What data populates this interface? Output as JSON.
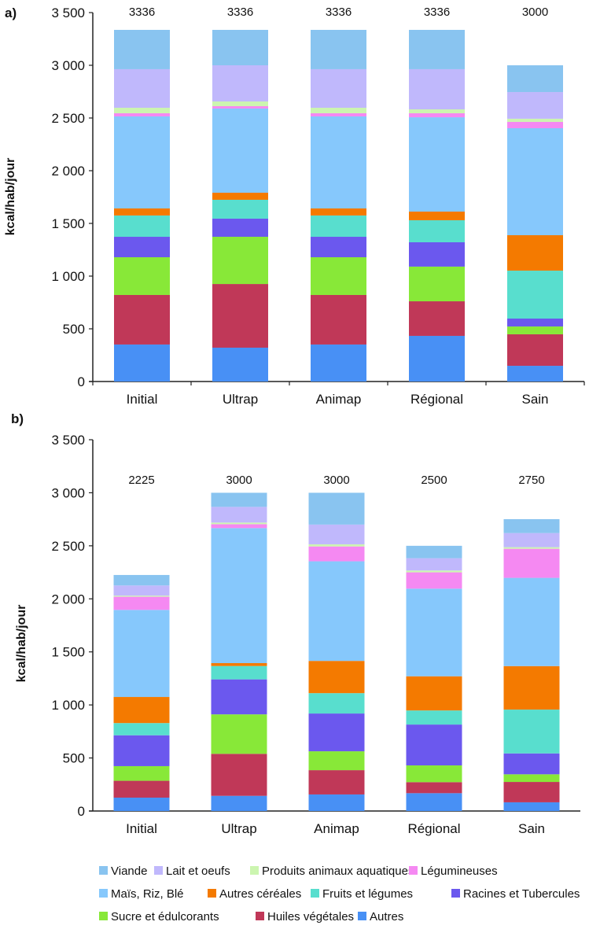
{
  "chart_data": [
    {
      "type": "bar",
      "stacked": true,
      "panel_label": "a)",
      "title": "",
      "xlabel": "",
      "ylabel": "kcal/hab/jour",
      "ylim": [
        0,
        3500
      ],
      "yticks": [
        0,
        500,
        1000,
        1500,
        2000,
        2500,
        3000,
        3500
      ],
      "ytick_labels": [
        "0",
        "500",
        "1 000",
        "1 500",
        "2 000",
        "2 500",
        "3 000",
        "3 500"
      ],
      "x_ticks": true,
      "categories": [
        "Initial",
        "Ultrap",
        "Animap",
        "Régional",
        "Sain"
      ],
      "totals": [
        "3336",
        "3336",
        "3336",
        "3336",
        "3000"
      ],
      "series": [
        {
          "name": "Autres",
          "values": [
            351,
            321,
            351,
            433,
            149
          ]
        },
        {
          "name": "Huiles végétales",
          "values": [
            470,
            604,
            470,
            328,
            299
          ]
        },
        {
          "name": "Sucre et édulcorants",
          "values": [
            358,
            448,
            358,
            329,
            74
          ]
        },
        {
          "name": "Racines et Tubercules",
          "values": [
            194,
            172,
            194,
            231,
            75
          ]
        },
        {
          "name": "Fruits et légumes",
          "values": [
            202,
            179,
            202,
            209,
            455
          ]
        },
        {
          "name": "Autres céréales",
          "values": [
            67,
            67,
            67,
            82,
            336
          ]
        },
        {
          "name": "Maïs, Riz, Blé",
          "values": [
            873,
            799,
            873,
            895,
            1015
          ]
        },
        {
          "name": "Légumineuses",
          "values": [
            30,
            22,
            30,
            38,
            60
          ]
        },
        {
          "name": "Produits animaux aquatiques",
          "values": [
            52,
            45,
            52,
            37,
            30
          ]
        },
        {
          "name": "Lait et oeufs",
          "values": [
            366,
            343,
            366,
            381,
            253
          ]
        },
        {
          "name": "Viande",
          "values": [
            373,
            336,
            373,
            373,
            254
          ]
        }
      ]
    },
    {
      "type": "bar",
      "stacked": true,
      "panel_label": "b)",
      "title": "",
      "xlabel": "",
      "ylabel": "kcal/hab/jour",
      "ylim": [
        0,
        3500
      ],
      "yticks": [
        0,
        500,
        1000,
        1500,
        2000,
        2500,
        3000,
        3500
      ],
      "ytick_labels": [
        "0",
        "500",
        "1 000",
        "1 500",
        "2 000",
        "2 500",
        "3 000",
        "3 500"
      ],
      "x_ticks": false,
      "categories": [
        "Initial",
        "Ultrap",
        "Animap",
        "Régional",
        "Sain"
      ],
      "totals": [
        "2225",
        "3000",
        "3000",
        "2500",
        "2750"
      ],
      "series": [
        {
          "name": "Autres",
          "values": [
            126,
            143,
            156,
            168,
            82
          ]
        },
        {
          "name": "Huiles végétales",
          "values": [
            159,
            396,
            229,
            104,
            192
          ]
        },
        {
          "name": "Sucre et édulcorants",
          "values": [
            138,
            372,
            178,
            158,
            72
          ]
        },
        {
          "name": "Racines et Tubercules",
          "values": [
            291,
            330,
            356,
            385,
            197
          ]
        },
        {
          "name": "Fruits et légumes",
          "values": [
            115,
            126,
            192,
            133,
            413
          ]
        },
        {
          "name": "Autres céréales",
          "values": [
            246,
            27,
            304,
            322,
            410
          ]
        },
        {
          "name": "Maïs, Riz, Blé",
          "values": [
            821,
            1273,
            939,
            826,
            832
          ]
        },
        {
          "name": "Légumineuses",
          "values": [
            124,
            37,
            140,
            154,
            274
          ]
        },
        {
          "name": "Produits animaux aquatiques",
          "values": [
            10,
            15,
            20,
            17,
            15
          ]
        },
        {
          "name": "Lait et oeufs",
          "values": [
            96,
            148,
            186,
            116,
            133
          ]
        },
        {
          "name": "Viande",
          "values": [
            99,
            133,
            300,
            117,
            131
          ]
        }
      ]
    }
  ],
  "legend": {
    "placement": "bottom",
    "rows": [
      [
        {
          "name": "Viande",
          "color": "#89c4f0"
        },
        {
          "name": "Lait et oeufs",
          "color": "#c0b8fc"
        },
        {
          "name": "Produits animaux aquatiques",
          "color": "#ccf5b0"
        },
        {
          "name": "Légumineuses",
          "color": "#f589f2"
        }
      ],
      [
        {
          "name": "Maïs, Riz, Blé",
          "color": "#86c8fc"
        },
        {
          "name": "Autres céréales",
          "color": "#f47a00"
        },
        {
          "name": "Fruits et légumes",
          "color": "#58dece"
        },
        {
          "name": "Racines et Tubercules",
          "color": "#6b58ee"
        }
      ],
      [
        {
          "name": "Sucre et édulcorants",
          "color": "#88e838"
        },
        {
          "name": "Huiles végétales",
          "color": "#c03858"
        },
        {
          "name": "Autres",
          "color": "#4890f5"
        }
      ]
    ]
  },
  "colors": {
    "Viande": "#89c4f0",
    "Lait et oeufs": "#c0b8fc",
    "Produits animaux aquatiques": "#ccf5b0",
    "Légumineuses": "#f589f2",
    "Maïs, Riz, Blé": "#86c8fc",
    "Autres céréales": "#f47a00",
    "Fruits et légumes": "#58dece",
    "Racines et Tubercules": "#6b58ee",
    "Sucre et édulcorants": "#88e838",
    "Huiles végétales": "#c03858",
    "Autres": "#4890f5",
    "axis": "#222222"
  }
}
